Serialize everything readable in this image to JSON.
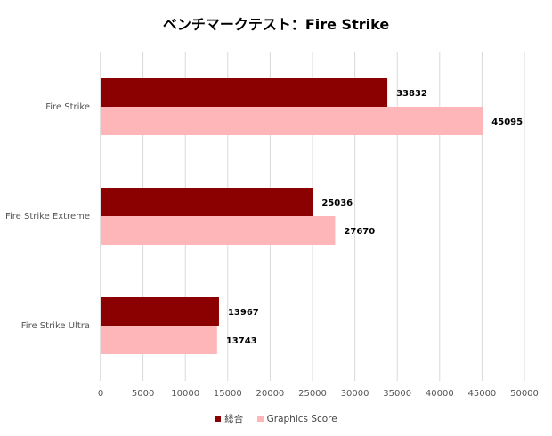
{
  "chart_data": {
    "type": "bar",
    "orientation": "horizontal",
    "title": "ベンチマークテスト：Fire Strike",
    "categories": [
      "Fire Strike",
      "Fire Strike Extreme",
      "Fire Strike Ultra"
    ],
    "series": [
      {
        "name": "総合",
        "color": "#8b0000",
        "values": [
          33832,
          25036,
          13967
        ]
      },
      {
        "name": "Graphics Score",
        "color": "#ffb6b9",
        "values": [
          45095,
          27670,
          13743
        ]
      }
    ],
    "xlim": [
      0,
      50000
    ],
    "x_ticks": [
      0,
      5000,
      10000,
      15000,
      20000,
      25000,
      30000,
      35000,
      40000,
      45000,
      50000
    ],
    "grid": "vertical",
    "legend": "bottom"
  }
}
